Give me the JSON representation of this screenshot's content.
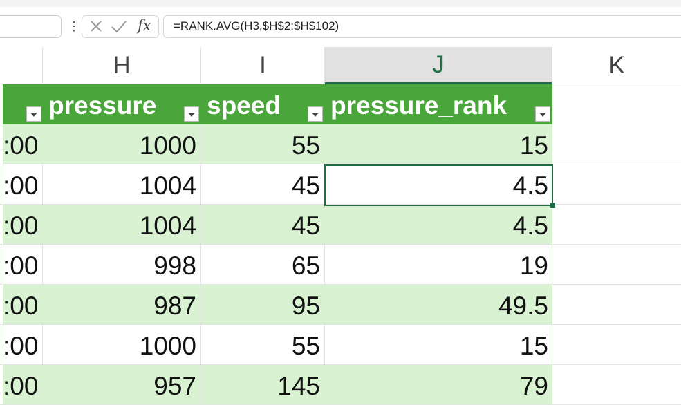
{
  "formula_bar": {
    "name_box": "",
    "fx_label": "fx",
    "formula": "=RANK.AVG(H3,$H$2:$H$102)"
  },
  "columns": [
    {
      "letter": "H",
      "selected": false
    },
    {
      "letter": "I",
      "selected": false
    },
    {
      "letter": "J",
      "selected": true
    },
    {
      "letter": "K",
      "selected": false
    }
  ],
  "table": {
    "headers": {
      "pressure": "pressure",
      "speed": "speed",
      "pressure_rank": "pressure_rank"
    },
    "header_color": "#4aa63a",
    "band_color": "#d9f2d2",
    "rows": [
      {
        "g": ":00",
        "pressure": "1000",
        "speed": "55",
        "rank": "15"
      },
      {
        "g": ":00",
        "pressure": "1004",
        "speed": "45",
        "rank": "4.5"
      },
      {
        "g": ":00",
        "pressure": "1004",
        "speed": "45",
        "rank": "4.5"
      },
      {
        "g": ":00",
        "pressure": "998",
        "speed": "65",
        "rank": "19"
      },
      {
        "g": ":00",
        "pressure": "987",
        "speed": "95",
        "rank": "49.5"
      },
      {
        "g": ":00",
        "pressure": "1000",
        "speed": "55",
        "rank": "15"
      },
      {
        "g": ":00",
        "pressure": "957",
        "speed": "145",
        "rank": "79"
      }
    ]
  },
  "active_cell": "J3"
}
